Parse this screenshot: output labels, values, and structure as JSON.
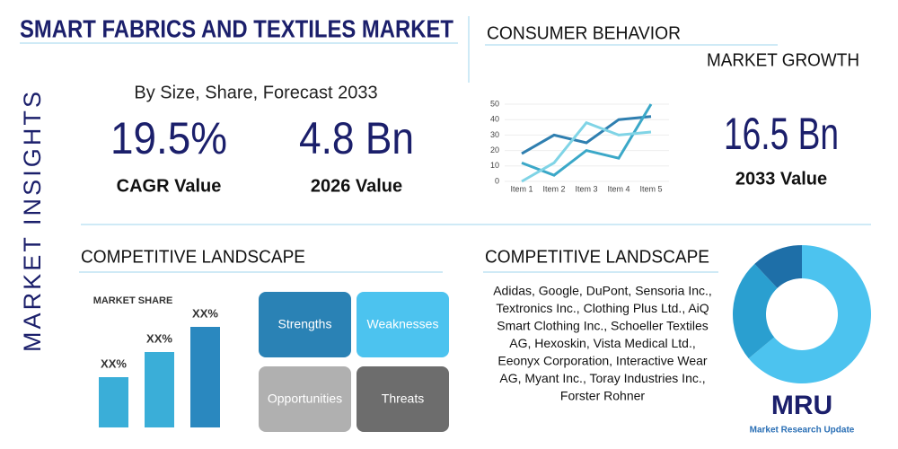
{
  "header": {
    "title": "SMART FABRICS AND TEXTILES MARKET",
    "side_label": "MARKET INSIGHTS",
    "subtitle": "By Size, Share, Forecast 2033"
  },
  "stats": [
    {
      "value": "19.5%",
      "label": "CAGR Value"
    },
    {
      "value": "4.8 Bn",
      "label": "2026 Value"
    },
    {
      "value": "16.5 Bn",
      "label": "2033 Value"
    }
  ],
  "consumer_behavior": {
    "title": "CONSUMER BEHAVIOR",
    "subtitle": "MARKET GROWTH",
    "chart_data": {
      "type": "line",
      "categories": [
        "Item 1",
        "Item 2",
        "Item 3",
        "Item 4",
        "Item 5"
      ],
      "ylim": [
        0,
        50
      ],
      "yticks": [
        0,
        10,
        20,
        30,
        40,
        50
      ],
      "series": [
        {
          "color": "#2f7fb0",
          "values": [
            18,
            30,
            25,
            40,
            42
          ]
        },
        {
          "color": "#3ba8c8",
          "values": [
            12,
            4,
            20,
            15,
            50
          ]
        },
        {
          "color": "#80d4e6",
          "values": [
            0,
            12,
            38,
            30,
            32
          ]
        }
      ]
    }
  },
  "competitive_left": {
    "title": "COMPETITIVE LANDSCAPE",
    "chart_data": {
      "type": "bar",
      "title": "MARKET SHARE",
      "values": [
        20,
        30,
        40
      ],
      "value_labels": [
        "XX%",
        "XX%",
        "XX%"
      ],
      "colors": [
        "#3aaed8",
        "#3aaed8",
        "#2a88bf"
      ]
    },
    "swot": [
      "Strengths",
      "Weaknesses",
      "Opportunities",
      "Threats"
    ]
  },
  "competitive_right": {
    "title": "COMPETITIVE LANDSCAPE",
    "lines": [
      "Adidas, Google, DuPont, Sensoria Inc.,",
      "Textronics Inc., Clothing Plus Ltd., AiQ",
      "Smart Clothing Inc., Schoeller Textiles",
      "AG, Hexoskin, Vista Medical Ltd.,",
      "Eeonyx Corporation, Interactive Wear",
      "AG, Myant Inc., Toray Industries Inc.,",
      "Forster Rohner"
    ],
    "chart_data": {
      "type": "pie",
      "values": [
        64,
        24,
        12
      ],
      "colors": [
        "#4cc3ef",
        "#2a9fd0",
        "#1e6fa8"
      ]
    }
  },
  "logo": {
    "mark": "MRU",
    "name": "Market Research Update"
  }
}
